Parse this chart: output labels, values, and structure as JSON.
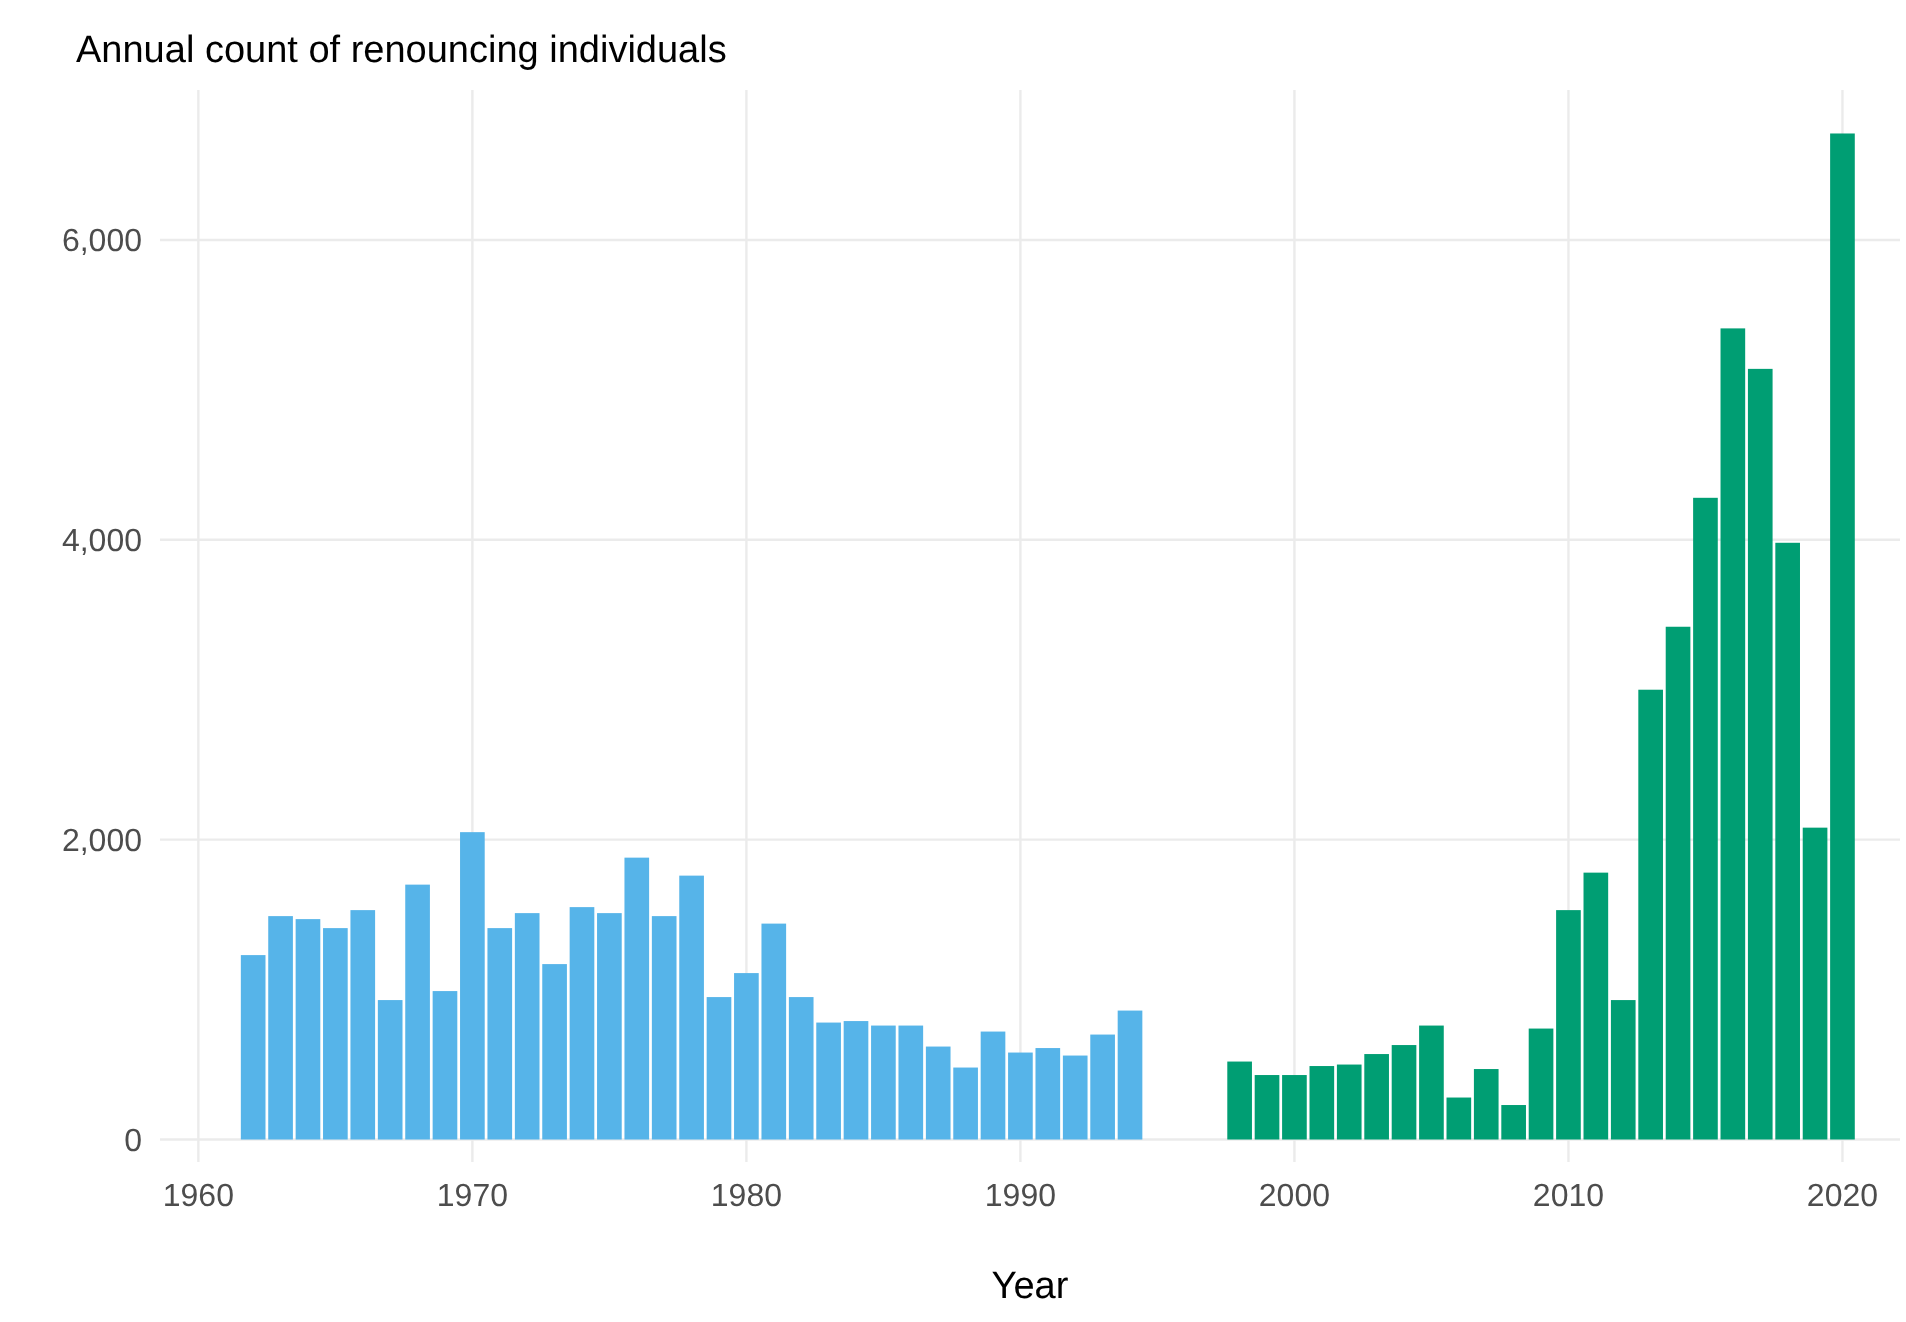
{
  "chart_data": {
    "type": "bar",
    "title": "Annual count of renouncing individuals",
    "xlabel": "Year",
    "xlim": [
      1958.6,
      2022.1
    ],
    "xticks": [
      1960,
      1970,
      1980,
      1990,
      2000,
      2010,
      2020
    ],
    "ylim": [
      -150,
      7000
    ],
    "yticks": [
      {
        "value": 0,
        "label": "0"
      },
      {
        "value": 2000,
        "label": "2,000"
      },
      {
        "value": 4000,
        "label": "4,000"
      },
      {
        "value": 6000,
        "label": "6,000"
      }
    ],
    "grid": true,
    "series": [
      {
        "color": "#56b4e9",
        "x": [
          1962,
          1963,
          1964,
          1965,
          1966,
          1967,
          1968,
          1969,
          1970,
          1971,
          1972,
          1973,
          1974,
          1975,
          1976,
          1977,
          1978,
          1979,
          1980,
          1981,
          1982,
          1983,
          1984,
          1985,
          1986,
          1987,
          1988,
          1989,
          1990,
          1991,
          1992,
          1993,
          1994
        ],
        "values": [
          1230,
          1490,
          1470,
          1410,
          1530,
          930,
          1700,
          990,
          2050,
          1410,
          1510,
          1170,
          1550,
          1510,
          1880,
          1490,
          1760,
          950,
          1110,
          1440,
          950,
          780,
          790,
          760,
          760,
          620,
          480,
          720,
          580,
          610,
          560,
          700,
          860
        ]
      },
      {
        "color": "#009e73",
        "x": [
          1998,
          1999,
          2000,
          2001,
          2002,
          2003,
          2004,
          2005,
          2006,
          2007,
          2008,
          2009,
          2010,
          2011,
          2012,
          2013,
          2014,
          2015,
          2016,
          2017,
          2018,
          2019,
          2020
        ],
        "values": [
          520,
          430,
          430,
          490,
          500,
          570,
          630,
          760,
          280,
          470,
          230,
          740,
          1530,
          1780,
          930,
          3000,
          3420,
          4280,
          5410,
          5140,
          3980,
          2080,
          6710
        ]
      }
    ]
  }
}
